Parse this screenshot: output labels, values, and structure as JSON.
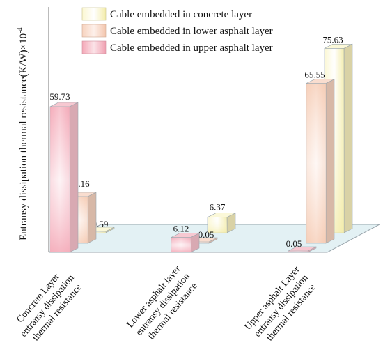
{
  "chart_data": {
    "type": "bar",
    "ylabel": "Entransy dissipation thermal resistance(K/W)×10",
    "ylabel_exponent": "-4",
    "categories": [
      [
        "Concrete Layer",
        "entransy dissipation",
        "thermal resistance"
      ],
      [
        "Lower asphalt layer",
        "entransy dissipation",
        "thermal resistance"
      ],
      [
        "Upper asphalt Layer",
        "entransy dissipation",
        "thermal resistance"
      ]
    ],
    "series": [
      {
        "name": "Cable embedded in concrete layer",
        "values": [
          0.59,
          6.37,
          75.63
        ]
      },
      {
        "name": "Cable embedded in lower asphalt layer",
        "values": [
          19.16,
          0.05,
          65.55
        ]
      },
      {
        "name": "Cable embedded in upper asphalt layer",
        "values": [
          59.73,
          6.12,
          0.05
        ]
      }
    ],
    "data_labels": [
      [
        "0.59",
        "6.37",
        "75.63"
      ],
      [
        "19.16",
        "0.05",
        "65.55"
      ],
      [
        "59.73",
        "6.12",
        "0.05"
      ]
    ],
    "colors": {
      "concrete": "#f7f2b0",
      "lower": "#f6cdb6",
      "upper": "#f5b0bd",
      "floor": "#ddeef2",
      "frame": "#8f9aa1"
    },
    "legend_placement": "top"
  }
}
